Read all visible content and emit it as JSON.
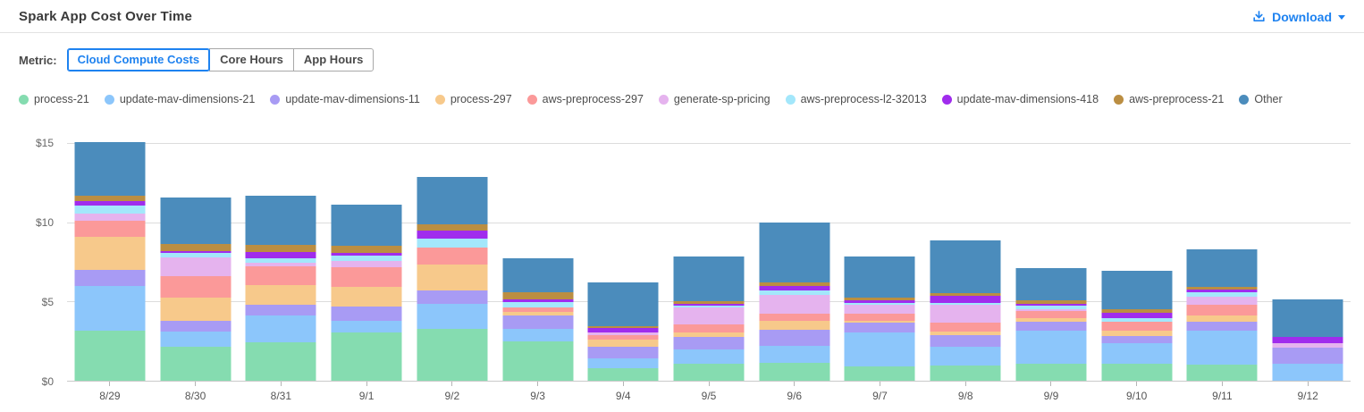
{
  "header": {
    "title": "Spark App Cost Over Time",
    "download_label": "Download",
    "accent_color": "#1e82f0",
    "icons": {
      "download": "download-tray-icon",
      "caret": "caret-down-icon"
    }
  },
  "metric": {
    "label": "Metric:",
    "options": [
      {
        "label": "Cloud Compute Costs",
        "selected": true
      },
      {
        "label": "Core Hours",
        "selected": false
      },
      {
        "label": "App Hours",
        "selected": false
      }
    ]
  },
  "chart_data": {
    "type": "bar",
    "stacked": true,
    "title": "Spark App Cost Over Time",
    "xlabel": "",
    "ylabel": "",
    "ylim": [
      0,
      15
    ],
    "ytick_labels": [
      "$0",
      "$5",
      "$10",
      "$15"
    ],
    "grid": true,
    "legend_position": "top-left",
    "categories": [
      "8/29",
      "8/30",
      "8/31",
      "9/1",
      "9/2",
      "9/3",
      "9/4",
      "9/5",
      "9/6",
      "9/7",
      "9/8",
      "9/9",
      "9/10",
      "9/11",
      "9/12"
    ],
    "series": [
      {
        "name": "process-21",
        "color": "#85dcb0",
        "values": [
          3.17,
          2.15,
          2.4,
          3.05,
          3.28,
          2.5,
          0.81,
          1.08,
          1.13,
          0.89,
          0.94,
          1.09,
          1.09,
          1.0,
          0
        ]
      },
      {
        "name": "update-mav-dimensions-21",
        "color": "#8cc6fb",
        "values": [
          2.77,
          0.95,
          1.68,
          0.72,
          1.55,
          0.75,
          0.6,
          0.87,
          1.09,
          2.13,
          1.17,
          2.03,
          1.28,
          2.12,
          1.05
        ]
      },
      {
        "name": "update-mav-dimensions-11",
        "color": "#a89bf4",
        "values": [
          1.0,
          0.65,
          0.67,
          0.9,
          0.83,
          0.83,
          0.72,
          0.79,
          0.98,
          0.62,
          0.75,
          0.57,
          0.45,
          0.6,
          1.05
        ]
      },
      {
        "name": "process-297",
        "color": "#f7c98b",
        "values": [
          2.08,
          1.45,
          1.29,
          1.25,
          1.66,
          0.25,
          0.45,
          0.28,
          0.57,
          0.13,
          0.21,
          0.26,
          0.34,
          0.41,
          0
        ]
      },
      {
        "name": "aws-preprocess-297",
        "color": "#fb9999",
        "values": [
          1.04,
          1.4,
          1.13,
          1.19,
          1.06,
          0.28,
          0.28,
          0.51,
          0.47,
          0.47,
          0.57,
          0.45,
          0.56,
          0.62,
          0
        ]
      },
      {
        "name": "generate-sp-pricing",
        "color": "#e5b3ee",
        "values": [
          0.43,
          1.15,
          0.25,
          0.43,
          0,
          0,
          0.15,
          1.06,
          1.17,
          0.53,
          1.13,
          0.11,
          0,
          0.56,
          0.26
        ]
      },
      {
        "name": "aws-preprocess-l2-32013",
        "color": "#a3e7fb",
        "values": [
          0.55,
          0.3,
          0.3,
          0.34,
          0.57,
          0.32,
          0,
          0.15,
          0.25,
          0.13,
          0.13,
          0.19,
          0.23,
          0.28,
          0
        ]
      },
      {
        "name": "update-mav-dimensions-418",
        "color": "#a02ced",
        "values": [
          0.23,
          0.1,
          0.4,
          0.13,
          0.49,
          0.19,
          0.3,
          0.1,
          0.32,
          0.15,
          0.42,
          0.15,
          0.34,
          0.15,
          0.38
        ]
      },
      {
        "name": "aws-preprocess-21",
        "color": "#bb8e42",
        "values": [
          0.36,
          0.45,
          0.4,
          0.45,
          0.4,
          0.47,
          0.11,
          0.17,
          0.19,
          0.19,
          0.19,
          0.19,
          0.23,
          0.19,
          0
        ]
      },
      {
        "name": "Other",
        "color": "#4b8cbc",
        "values": [
          3.38,
          2.95,
          3.1,
          2.6,
          2.95,
          2.13,
          2.78,
          2.79,
          3.77,
          2.57,
          3.3,
          2.03,
          2.41,
          2.33,
          2.36
        ]
      }
    ]
  }
}
